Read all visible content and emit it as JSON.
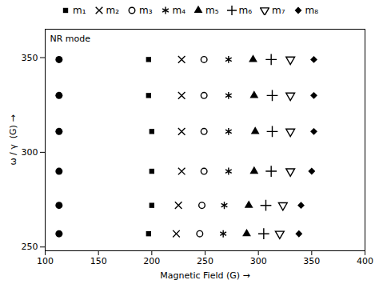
{
  "chart_data": {
    "type": "scatter",
    "xlabel": "Magnetic Field (G)",
    "ylabel": "ω / γ  (G)",
    "xlim": [
      100,
      400
    ],
    "ylim": [
      248,
      365
    ],
    "xticks": [
      100,
      150,
      200,
      250,
      300,
      350,
      400
    ],
    "yticks": [
      250,
      300,
      350
    ],
    "grid": false,
    "legend": "top",
    "annotations": [
      {
        "text": "NR mode"
      }
    ],
    "series": [
      {
        "marker": "circle",
        "color": "black",
        "x": [
          113,
          113,
          113,
          113,
          113,
          113
        ],
        "values": [
          349,
          330,
          311,
          290,
          272,
          257
        ]
      },
      {
        "name": "m₁",
        "marker": "square",
        "color": "black",
        "x": [
          197,
          197,
          200,
          200,
          200,
          197
        ],
        "values": [
          349,
          330,
          311,
          290,
          272,
          257
        ]
      },
      {
        "name": "m₂",
        "marker": "x",
        "color": "black",
        "x": [
          228,
          228,
          228,
          228,
          225,
          223
        ],
        "values": [
          349,
          330,
          311,
          290,
          272,
          257
        ]
      },
      {
        "name": "m₃",
        "marker": "open_circle",
        "color": "black",
        "x": [
          249,
          249,
          249,
          249,
          247,
          245
        ],
        "values": [
          349,
          330,
          311,
          290,
          272,
          257
        ]
      },
      {
        "name": "m₄",
        "marker": "asterisk",
        "color": "black",
        "x": [
          272,
          272,
          272,
          272,
          268,
          267
        ],
        "values": [
          349,
          330,
          311,
          290,
          272,
          257
        ]
      },
      {
        "name": "m₅",
        "marker": "triangle_up",
        "color": "black",
        "x": [
          295,
          296,
          297,
          296,
          291,
          289
        ],
        "values": [
          349,
          330,
          311,
          290,
          272,
          257
        ]
      },
      {
        "name": "m₆",
        "marker": "plus",
        "color": "black",
        "x": [
          312,
          313,
          313,
          312,
          307,
          305
        ],
        "values": [
          349,
          330,
          311,
          290,
          272,
          257
        ]
      },
      {
        "name": "m₇",
        "marker": "open_triangle_down",
        "color": "black",
        "x": [
          330,
          330,
          330,
          330,
          323,
          320
        ],
        "values": [
          349,
          330,
          311,
          290,
          272,
          257
        ]
      },
      {
        "name": "m₈",
        "marker": "diamond",
        "color": "black",
        "x": [
          352,
          352,
          352,
          350,
          340,
          338
        ],
        "values": [
          349,
          330,
          311,
          290,
          272,
          257
        ]
      }
    ]
  }
}
